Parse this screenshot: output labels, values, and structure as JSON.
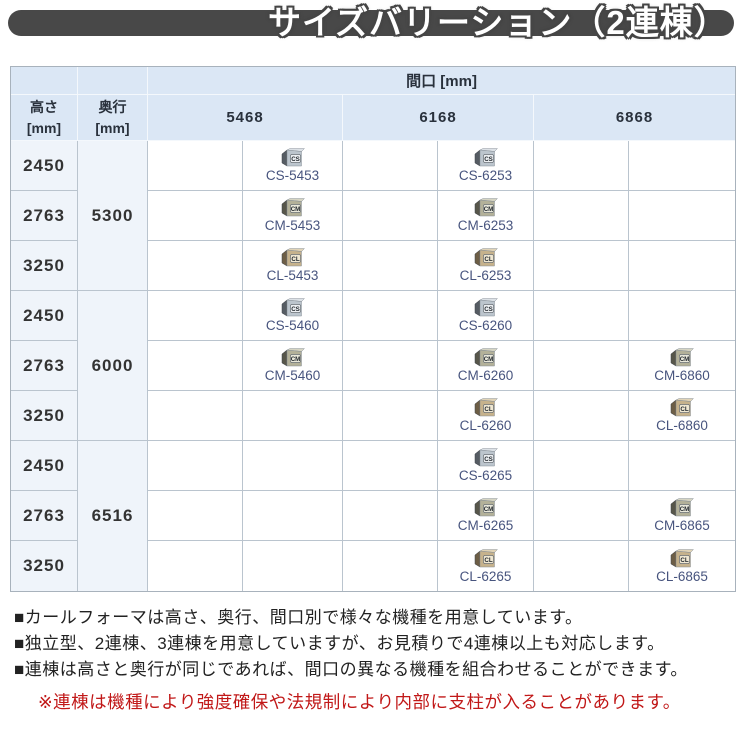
{
  "title": "サイズバリーション（2連棟）",
  "table": {
    "frontage_header": "間口 [mm]",
    "height_header": "高さ\n[mm]",
    "depth_header": "奥行\n[mm]",
    "widths": [
      "5468",
      "6168",
      "6868"
    ],
    "sections": [
      {
        "depth": "5300",
        "rows": [
          {
            "height": "2450",
            "cells": [
              {
                "type": "CS",
                "code": "CS-5453"
              },
              {
                "type": "CS",
                "code": "CS-6253"
              },
              null
            ]
          },
          {
            "height": "2763",
            "cells": [
              {
                "type": "CM",
                "code": "CM-5453"
              },
              {
                "type": "CM",
                "code": "CM-6253"
              },
              null
            ]
          },
          {
            "height": "3250",
            "cells": [
              {
                "type": "CL",
                "code": "CL-5453"
              },
              {
                "type": "CL",
                "code": "CL-6253"
              },
              null
            ]
          }
        ]
      },
      {
        "depth": "6000",
        "rows": [
          {
            "height": "2450",
            "cells": [
              {
                "type": "CS",
                "code": "CS-5460"
              },
              {
                "type": "CS",
                "code": "CS-6260"
              },
              null
            ]
          },
          {
            "height": "2763",
            "cells": [
              {
                "type": "CM",
                "code": "CM-5460"
              },
              {
                "type": "CM",
                "code": "CM-6260"
              },
              {
                "type": "CM",
                "code": "CM-6860"
              }
            ]
          },
          {
            "height": "3250",
            "cells": [
              null,
              {
                "type": "CL",
                "code": "CL-6260"
              },
              {
                "type": "CL",
                "code": "CL-6860"
              }
            ]
          }
        ]
      },
      {
        "depth": "6516",
        "rows": [
          {
            "height": "2450",
            "cells": [
              null,
              {
                "type": "CS",
                "code": "CS-6265"
              },
              null
            ]
          },
          {
            "height": "2763",
            "cells": [
              null,
              {
                "type": "CM",
                "code": "CM-6265"
              },
              {
                "type": "CM",
                "code": "CM-6865"
              }
            ]
          },
          {
            "height": "3250",
            "cells": [
              null,
              {
                "type": "CL",
                "code": "CL-6265"
              },
              {
                "type": "CL",
                "code": "CL-6865"
              }
            ]
          }
        ]
      }
    ]
  },
  "notes": [
    "■カールフォーマは高さ、奥行、間口別で様々な機種を用意しています。",
    "■独立型、2連棟、3連棟を用意していますが、お見積りで4連棟以上も対応します。",
    "■連棟は高さと奥行が同じであれば、間口の異なる機種を組合わせることができます。"
  ],
  "warning": "※連棟は機種により強度確保や法規制により内部に支柱が入ることがあります。",
  "icon_colors": {
    "CS": {
      "face": "#bcc5cd",
      "top": "#dce1e6",
      "side": "#565c63",
      "label": "#edf0f3"
    },
    "CM": {
      "face": "#b3b199",
      "top": "#d5d4c2",
      "side": "#57564a",
      "label": "#e9e8da"
    },
    "CL": {
      "face": "#c6b28c",
      "top": "#e0d3b6",
      "side": "#6d5e46",
      "label": "#f0e8d2"
    }
  },
  "colors": {
    "title_bar": "#484848",
    "header_bg": "#dbe7f5",
    "label_bg": "#eff4fa",
    "grid_border": "#bac4ce",
    "link_text": "#47547e",
    "warning_text": "#c11818"
  }
}
